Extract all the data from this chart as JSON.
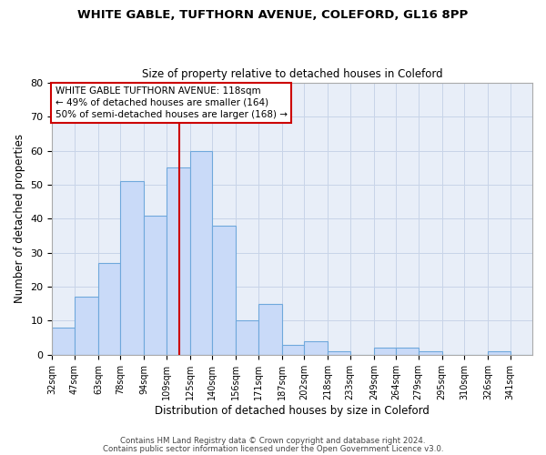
{
  "title1": "WHITE GABLE, TUFTHORN AVENUE, COLEFORD, GL16 8PP",
  "title2": "Size of property relative to detached houses in Coleford",
  "xlabel": "Distribution of detached houses by size in Coleford",
  "ylabel": "Number of detached properties",
  "bins": [
    32,
    47,
    63,
    78,
    94,
    109,
    125,
    140,
    156,
    171,
    187,
    202,
    218,
    233,
    249,
    264,
    279,
    295,
    310,
    326,
    341
  ],
  "values": [
    8,
    17,
    27,
    51,
    41,
    55,
    60,
    38,
    10,
    15,
    3,
    4,
    1,
    0,
    2,
    2,
    1,
    0,
    0,
    1,
    0
  ],
  "bar_color": "#c9daf8",
  "bar_edge_color": "#6fa8dc",
  "red_line_x": 118,
  "annotation_title": "WHITE GABLE TUFTHORN AVENUE: 118sqm",
  "annotation_line2": "← 49% of detached houses are smaller (164)",
  "annotation_line3": "50% of semi-detached houses are larger (168) →",
  "annotation_box_color": "#ffffff",
  "annotation_box_edge": "#cc0000",
  "red_line_color": "#cc0000",
  "ylim": [
    0,
    80
  ],
  "yticks": [
    0,
    10,
    20,
    30,
    40,
    50,
    60,
    70,
    80
  ],
  "footer1": "Contains HM Land Registry data © Crown copyright and database right 2024.",
  "footer2": "Contains public sector information licensed under the Open Government Licence v3.0.",
  "background_color": "#ffffff",
  "plot_bg_color": "#e8eef8",
  "grid_color": "#c8d4e8"
}
